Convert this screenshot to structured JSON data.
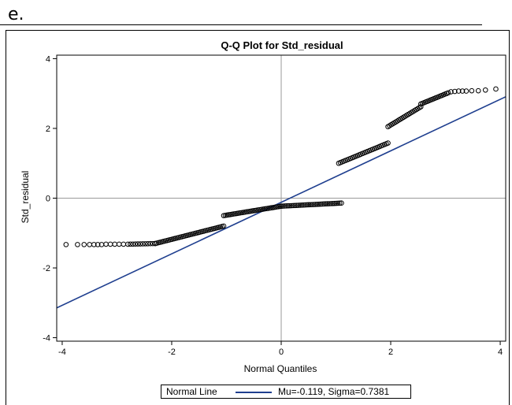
{
  "question_label": "e.",
  "chart_data": {
    "type": "scatter",
    "title": "Q-Q Plot for Std_residual",
    "xlabel": "Normal Quantiles",
    "ylabel": "Std_residual",
    "xlim": [
      -4.1,
      4.1
    ],
    "ylim": [
      -4.1,
      4.1
    ],
    "xticks": [
      -4,
      -2,
      0,
      2,
      4
    ],
    "yticks": [
      -4,
      -2,
      0,
      2,
      4
    ],
    "reference_lines": {
      "x": 0,
      "y": 0
    },
    "grid": false,
    "legend_position": "bottom",
    "legend_title": "Normal Line",
    "series": [
      {
        "name": "Mu=-0.119, Sigma=0.7381",
        "kind": "line",
        "color": "#1f3f8f",
        "intercept": -0.119,
        "slope": 0.7381
      },
      {
        "kind": "points",
        "marker_color": "#000000",
        "segments": [
          {
            "x_range": [
              -2.8,
              -2.3
            ],
            "y_range": [
              -1.32,
              -1.3
            ],
            "n": 12
          },
          {
            "x_range": [
              -2.3,
              -1.05
            ],
            "y_range": [
              -1.3,
              -0.8
            ],
            "n": 42
          },
          {
            "x_range": [
              -1.05,
              0.0
            ],
            "y_range": [
              -0.5,
              -0.23
            ],
            "n": 36
          },
          {
            "x_range": [
              0.0,
              1.1
            ],
            "y_range": [
              -0.23,
              -0.14
            ],
            "n": 36
          },
          {
            "x_range": [
              1.05,
              1.95
            ],
            "y_range": [
              1.0,
              1.58
            ],
            "n": 30
          },
          {
            "x_range": [
              1.95,
              2.55
            ],
            "y_range": [
              2.05,
              2.62
            ],
            "n": 22
          },
          {
            "x_range": [
              2.55,
              3.05
            ],
            "y_range": [
              2.7,
              3.02
            ],
            "n": 18
          }
        ],
        "tail_points": [
          {
            "x": -3.93,
            "y": -1.33
          },
          {
            "x": -3.72,
            "y": -1.33
          },
          {
            "x": -3.6,
            "y": -1.33
          },
          {
            "x": -3.5,
            "y": -1.33
          },
          {
            "x": -3.42,
            "y": -1.33
          },
          {
            "x": -3.35,
            "y": -1.33
          },
          {
            "x": -3.28,
            "y": -1.33
          },
          {
            "x": -3.2,
            "y": -1.32
          },
          {
            "x": -3.12,
            "y": -1.32
          },
          {
            "x": -3.04,
            "y": -1.32
          },
          {
            "x": -2.96,
            "y": -1.32
          },
          {
            "x": -2.88,
            "y": -1.32
          },
          {
            "x": 3.1,
            "y": 3.05
          },
          {
            "x": 3.17,
            "y": 3.06
          },
          {
            "x": 3.24,
            "y": 3.07
          },
          {
            "x": 3.31,
            "y": 3.07
          },
          {
            "x": 3.38,
            "y": 3.07
          },
          {
            "x": 3.48,
            "y": 3.08
          },
          {
            "x": 3.6,
            "y": 3.08
          },
          {
            "x": 3.73,
            "y": 3.1
          },
          {
            "x": 3.92,
            "y": 3.13
          }
        ]
      }
    ]
  }
}
